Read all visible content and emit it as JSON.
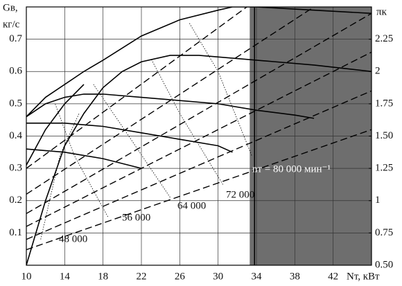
{
  "chart_data": {
    "type": "line",
    "x_label": "Nт, кВт",
    "y_label": [
      "Gв,",
      "кг/с"
    ],
    "y2_label": "πк",
    "xlim": [
      10,
      46
    ],
    "xticks": [
      10,
      14,
      18,
      22,
      26,
      30,
      34,
      38,
      42
    ],
    "ylim": [
      0,
      0.8
    ],
    "yticks": [
      0.1,
      0.2,
      0.3,
      0.4,
      0.5,
      0.6,
      0.7
    ],
    "y2lim": [
      0.5,
      2.5
    ],
    "y2ticks": [
      {
        "value": 0.5,
        "label": "0.50"
      },
      0.75,
      1,
      1.25,
      {
        "value": 1.5,
        "label": "1.50"
      },
      1.75,
      2,
      2.25
    ],
    "grid": true,
    "shade": [
      33.3,
      46
    ],
    "shade_color": "#6e6e6e",
    "series": [
      {
        "color": "#000",
        "style": "solid",
        "x": [
          10,
          12,
          14,
          16,
          18,
          22,
          26,
          30,
          31.5,
          34,
          40,
          46
        ],
        "values": [
          0.46,
          0.52,
          0.56,
          0.6,
          0.635,
          0.71,
          0.76,
          0.79,
          0.8,
          0.8,
          0.79,
          0.78
        ]
      },
      {
        "color": "#000",
        "style": "solid",
        "x": [
          10,
          12,
          14,
          16,
          18,
          20,
          22,
          25,
          28,
          32,
          36,
          40,
          46
        ],
        "values": [
          0.0,
          0.2,
          0.37,
          0.47,
          0.55,
          0.6,
          0.63,
          0.65,
          0.65,
          0.64,
          0.63,
          0.62,
          0.6
        ]
      },
      {
        "color": "#000",
        "style": "solid",
        "x": [
          10,
          12,
          14,
          16,
          18,
          22,
          26,
          30,
          34,
          38,
          40
        ],
        "values": [
          0.46,
          0.5,
          0.52,
          0.53,
          0.53,
          0.52,
          0.51,
          0.5,
          0.48,
          0.465,
          0.455
        ]
      },
      {
        "color": "#000",
        "style": "solid",
        "x": [
          10,
          14,
          18,
          22,
          26,
          30,
          31.5
        ],
        "values": [
          0.44,
          0.44,
          0.43,
          0.41,
          0.39,
          0.37,
          0.35
        ]
      },
      {
        "color": "#000",
        "style": "solid",
        "x": [
          10,
          14,
          18,
          22
        ],
        "values": [
          0.36,
          0.35,
          0.33,
          0.3
        ]
      },
      {
        "color": "#000",
        "style": "solid",
        "x": [
          10,
          12,
          14,
          16
        ],
        "values": [
          0.31,
          0.42,
          0.5,
          0.56
        ]
      },
      {
        "color": "#000",
        "style": "dashed",
        "axis": "y2",
        "x": [
          10,
          46
        ],
        "values": [
          0.62,
          1.55
        ]
      },
      {
        "color": "#000",
        "style": "dashed",
        "axis": "y2",
        "x": [
          10,
          46
        ],
        "values": [
          0.7,
          1.85
        ]
      },
      {
        "color": "#000",
        "style": "dashed",
        "axis": "y2",
        "x": [
          10,
          46
        ],
        "values": [
          0.8,
          2.15
        ]
      },
      {
        "color": "#000",
        "style": "dashed",
        "axis": "y2",
        "x": [
          10,
          46
        ],
        "values": [
          0.9,
          2.45
        ]
      },
      {
        "color": "#000",
        "style": "dashed",
        "axis": "y2",
        "x": [
          10,
          40
        ],
        "values": [
          1.05,
          2.5
        ]
      },
      {
        "color": "#000",
        "style": "dashed",
        "axis": "y2",
        "x": [
          10,
          33
        ],
        "values": [
          1.25,
          2.5
        ]
      },
      {
        "color": "#000",
        "style": "dotted",
        "x": [
          11.5,
          13.5,
          15.5
        ],
        "values": [
          0.08,
          0.34,
          0.47
        ]
      },
      {
        "color": "#000",
        "style": "dotted",
        "x": [
          18.5,
          15,
          13
        ],
        "values": [
          0.15,
          0.34,
          0.5
        ]
      },
      {
        "color": "#000",
        "style": "dotted",
        "x": [
          25,
          20,
          17
        ],
        "values": [
          0.21,
          0.43,
          0.56
        ]
      },
      {
        "color": "#000",
        "style": "dotted",
        "x": [
          30.5,
          26,
          23
        ],
        "values": [
          0.25,
          0.47,
          0.64
        ]
      },
      {
        "color": "#000",
        "style": "dotted",
        "x": [
          33.5,
          30,
          27
        ],
        "values": [
          0.34,
          0.6,
          0.75
        ]
      }
    ],
    "annotations": [
      "48 000",
      "56 000",
      "64 000",
      "72 000",
      "nт = 80 000 мин⁻¹"
    ],
    "vline": 33.8
  }
}
